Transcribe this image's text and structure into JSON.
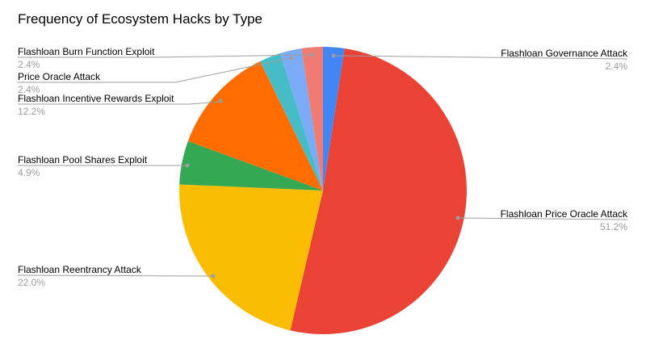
{
  "title": "Frequency of Ecosystem Hacks by Type",
  "colors": {
    "background": "#ffffff",
    "title_text": "#000000",
    "label_text": "#000000",
    "muted_text": "#9e9e9e",
    "leader_line": "#9e9e9e",
    "leader_dot": "#9e9e9e"
  },
  "chart_data": {
    "type": "pie",
    "title": "Frequency of Ecosystem Hacks by Type",
    "start_angle_deg": 0,
    "direction": "clockwise",
    "legend": "labeled-callouts",
    "slices": [
      {
        "label": "Flashloan Governance Attack",
        "pct": 2.4,
        "pct_label": "2.4%",
        "color": "#4285F4",
        "label_side": "right"
      },
      {
        "label": "Flashloan Price Oracle Attack",
        "pct": 51.2,
        "pct_label": "51.2%",
        "color": "#EA4335",
        "label_side": "right"
      },
      {
        "label": "Flashloan Reentrancy Attack",
        "pct": 22.0,
        "pct_label": "22.0%",
        "color": "#FBBC04",
        "label_side": "left"
      },
      {
        "label": "Flashloan Pool Shares Exploit",
        "pct": 4.9,
        "pct_label": "4.9%",
        "color": "#34A853",
        "label_side": "left"
      },
      {
        "label": "Flashloan Incentive Rewards Exploit",
        "pct": 12.2,
        "pct_label": "12.2%",
        "color": "#FF6D01",
        "label_side": "left"
      },
      {
        "label": "",
        "pct": 2.4,
        "pct_label": "",
        "color": "#46BDC6",
        "label_side": "none"
      },
      {
        "label": "Price Oracle Attack",
        "pct": 2.4,
        "pct_label": "2.4%",
        "color": "#7BAAF7",
        "label_side": "left"
      },
      {
        "label": "Flashloan Burn Function Exploit",
        "pct": 2.4,
        "pct_label": "2.4%",
        "color": "#F07B72",
        "label_side": "left"
      }
    ]
  }
}
